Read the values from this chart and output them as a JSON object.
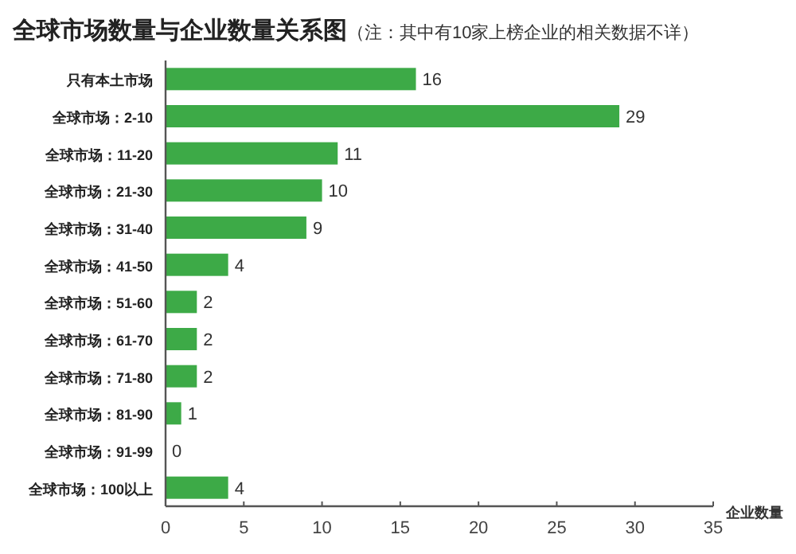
{
  "chart_data": {
    "type": "bar",
    "orientation": "horizontal",
    "title": "全球市场数量与企业数量关系图",
    "subtitle": "（注：其中有10家上榜企业的相关数据不详）",
    "xlabel": "企业数量",
    "categories": [
      "只有本土市场",
      "全球市场：2-10",
      "全球市场：11-20",
      "全球市场：21-30",
      "全球市场：31-40",
      "全球市场：41-50",
      "全球市场：51-60",
      "全球市场：61-70",
      "全球市场：71-80",
      "全球市场：81-90",
      "全球市场：91-99",
      "全球市场：100以上"
    ],
    "values": [
      16,
      29,
      11,
      10,
      9,
      4,
      2,
      2,
      2,
      1,
      0,
      4
    ],
    "color": "#3daa47",
    "xlim": [
      0,
      35
    ],
    "xticks": [
      0,
      5,
      10,
      15,
      20,
      25,
      30,
      35
    ],
    "data_labels": true
  }
}
